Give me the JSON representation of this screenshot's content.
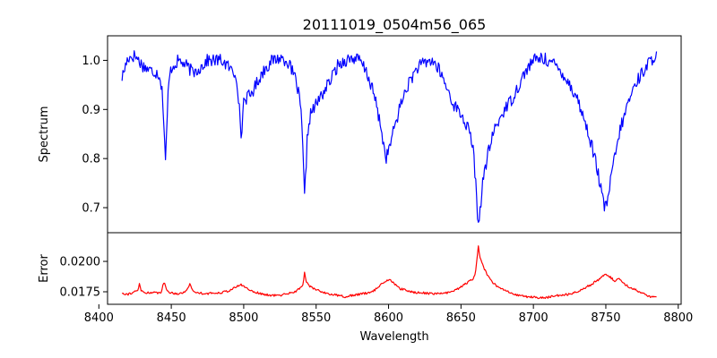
{
  "chart_data": {
    "type": "line",
    "title": "20111019_0504m56_065",
    "xlabel": "Wavelength",
    "xlim": [
      8406,
      8802
    ],
    "xticks": [
      8400,
      8450,
      8500,
      8550,
      8600,
      8650,
      8700,
      8750,
      8800
    ],
    "line_width": 1.2,
    "panels": [
      {
        "name": "spectrum",
        "ylabel": "Spectrum",
        "ylim": [
          0.649,
          1.05
        ],
        "yticks": [
          0.7,
          0.8,
          0.9,
          1.0
        ],
        "ytick_labels": [
          "0.7",
          "0.8",
          "0.9",
          "1.0"
        ],
        "color": "#0000ff",
        "base_points": [
          [
            8416,
            0.965
          ],
          [
            8420,
            1.005
          ],
          [
            8425,
            1.01
          ],
          [
            8430,
            0.99
          ],
          [
            8435,
            0.98
          ],
          [
            8440,
            0.975
          ],
          [
            8442,
            0.97
          ],
          [
            8444,
            0.93
          ],
          [
            8445,
            0.86
          ],
          [
            8446,
            0.8
          ],
          [
            8447,
            0.86
          ],
          [
            8448,
            0.95
          ],
          [
            8450,
            0.985
          ],
          [
            8455,
            1.0
          ],
          [
            8460,
            0.99
          ],
          [
            8465,
            0.975
          ],
          [
            8470,
            0.985
          ],
          [
            8475,
            1.0
          ],
          [
            8480,
            1.0
          ],
          [
            8485,
            1.0
          ],
          [
            8490,
            0.985
          ],
          [
            8493,
            0.975
          ],
          [
            8495,
            0.97
          ],
          [
            8496,
            0.94
          ],
          [
            8497,
            0.9
          ],
          [
            8498,
            0.84
          ],
          [
            8499,
            0.87
          ],
          [
            8500,
            0.92
          ],
          [
            8505,
            0.93
          ],
          [
            8510,
            0.96
          ],
          [
            8515,
            0.985
          ],
          [
            8520,
            1.0
          ],
          [
            8525,
            1.005
          ],
          [
            8530,
            1.0
          ],
          [
            8533,
            0.98
          ],
          [
            8536,
            0.96
          ],
          [
            8538,
            0.93
          ],
          [
            8540,
            0.88
          ],
          [
            8541,
            0.8
          ],
          [
            8542,
            0.72
          ],
          [
            8543,
            0.78
          ],
          [
            8544,
            0.85
          ],
          [
            8546,
            0.89
          ],
          [
            8550,
            0.91
          ],
          [
            8555,
            0.935
          ],
          [
            8560,
            0.96
          ],
          [
            8565,
            0.99
          ],
          [
            8570,
            1.0
          ],
          [
            8575,
            1.005
          ],
          [
            8580,
            1.0
          ],
          [
            8585,
            0.975
          ],
          [
            8590,
            0.93
          ],
          [
            8595,
            0.86
          ],
          [
            8598,
            0.8
          ],
          [
            8600,
            0.815
          ],
          [
            8605,
            0.875
          ],
          [
            8610,
            0.925
          ],
          [
            8615,
            0.96
          ],
          [
            8620,
            0.985
          ],
          [
            8625,
            0.995
          ],
          [
            8630,
            1.0
          ],
          [
            8635,
            0.98
          ],
          [
            8640,
            0.945
          ],
          [
            8645,
            0.91
          ],
          [
            8650,
            0.89
          ],
          [
            8655,
            0.86
          ],
          [
            8658,
            0.83
          ],
          [
            8660,
            0.76
          ],
          [
            8661,
            0.7
          ],
          [
            8662,
            0.67
          ],
          [
            8663,
            0.69
          ],
          [
            8665,
            0.75
          ],
          [
            8668,
            0.8
          ],
          [
            8672,
            0.85
          ],
          [
            8675,
            0.87
          ],
          [
            8680,
            0.9
          ],
          [
            8685,
            0.92
          ],
          [
            8690,
            0.95
          ],
          [
            8695,
            0.98
          ],
          [
            8700,
            1.0
          ],
          [
            8705,
            1.005
          ],
          [
            8710,
            1.0
          ],
          [
            8715,
            0.99
          ],
          [
            8720,
            0.975
          ],
          [
            8725,
            0.95
          ],
          [
            8730,
            0.925
          ],
          [
            8735,
            0.88
          ],
          [
            8740,
            0.83
          ],
          [
            8744,
            0.78
          ],
          [
            8747,
            0.73
          ],
          [
            8749,
            0.7
          ],
          [
            8751,
            0.71
          ],
          [
            8753,
            0.75
          ],
          [
            8756,
            0.8
          ],
          [
            8760,
            0.86
          ],
          [
            8765,
            0.91
          ],
          [
            8770,
            0.95
          ],
          [
            8775,
            0.975
          ],
          [
            8780,
            0.995
          ],
          [
            8785,
            1.015
          ]
        ],
        "noise_amplitude": 0.013,
        "noise_seed": 17
      },
      {
        "name": "error",
        "ylabel": "Error",
        "ylim": [
          0.01647,
          0.02236
        ],
        "yticks": [
          0.0175,
          0.02
        ],
        "ytick_labels": [
          "0.0175",
          "0.0200"
        ],
        "color": "#ff0000",
        "base_points": [
          [
            8416,
            0.0174
          ],
          [
            8420,
            0.0173
          ],
          [
            8425,
            0.0175
          ],
          [
            8427,
            0.0176
          ],
          [
            8428,
            0.0182
          ],
          [
            8429,
            0.0176
          ],
          [
            8432,
            0.0174
          ],
          [
            8435,
            0.01745
          ],
          [
            8440,
            0.0174
          ],
          [
            8443,
            0.0175
          ],
          [
            8445,
            0.0183
          ],
          [
            8447,
            0.0176
          ],
          [
            8450,
            0.0174
          ],
          [
            8455,
            0.01735
          ],
          [
            8460,
            0.0175
          ],
          [
            8463,
            0.0182
          ],
          [
            8465,
            0.0175
          ],
          [
            8470,
            0.0174
          ],
          [
            8475,
            0.01735
          ],
          [
            8480,
            0.0174
          ],
          [
            8485,
            0.01745
          ],
          [
            8490,
            0.0176
          ],
          [
            8495,
            0.0179
          ],
          [
            8498,
            0.0181
          ],
          [
            8502,
            0.0178
          ],
          [
            8505,
            0.0176
          ],
          [
            8510,
            0.0174
          ],
          [
            8515,
            0.01725
          ],
          [
            8520,
            0.0172
          ],
          [
            8525,
            0.0172
          ],
          [
            8530,
            0.01735
          ],
          [
            8535,
            0.0175
          ],
          [
            8538,
            0.0177
          ],
          [
            8541,
            0.0181
          ],
          [
            8542,
            0.0192
          ],
          [
            8543,
            0.0183
          ],
          [
            8546,
            0.0179
          ],
          [
            8550,
            0.0177
          ],
          [
            8555,
            0.01745
          ],
          [
            8560,
            0.0173
          ],
          [
            8565,
            0.0172
          ],
          [
            8570,
            0.0171
          ],
          [
            8575,
            0.0172
          ],
          [
            8580,
            0.0173
          ],
          [
            8585,
            0.0174
          ],
          [
            8590,
            0.0176
          ],
          [
            8595,
            0.0181
          ],
          [
            8598,
            0.0184
          ],
          [
            8600,
            0.0185
          ],
          [
            8603,
            0.0183
          ],
          [
            8607,
            0.0178
          ],
          [
            8612,
            0.0176
          ],
          [
            8618,
            0.01745
          ],
          [
            8625,
            0.0174
          ],
          [
            8630,
            0.01735
          ],
          [
            8635,
            0.01735
          ],
          [
            8640,
            0.0174
          ],
          [
            8645,
            0.01755
          ],
          [
            8650,
            0.0179
          ],
          [
            8655,
            0.0183
          ],
          [
            8658,
            0.0185
          ],
          [
            8660,
            0.019
          ],
          [
            8661,
            0.0201
          ],
          [
            8662,
            0.0213
          ],
          [
            8663,
            0.0204
          ],
          [
            8665,
            0.0197
          ],
          [
            8668,
            0.0189
          ],
          [
            8672,
            0.0182
          ],
          [
            8676,
            0.0179
          ],
          [
            8680,
            0.0176
          ],
          [
            8685,
            0.0174
          ],
          [
            8690,
            0.0172
          ],
          [
            8695,
            0.0171
          ],
          [
            8700,
            0.01705
          ],
          [
            8705,
            0.017
          ],
          [
            8710,
            0.01705
          ],
          [
            8715,
            0.01715
          ],
          [
            8720,
            0.01725
          ],
          [
            8725,
            0.0173
          ],
          [
            8730,
            0.0175
          ],
          [
            8735,
            0.0178
          ],
          [
            8740,
            0.0181
          ],
          [
            8745,
            0.0185
          ],
          [
            8749,
            0.0189
          ],
          [
            8752,
            0.0188
          ],
          [
            8756,
            0.0184
          ],
          [
            8759,
            0.0186
          ],
          [
            8762,
            0.0182
          ],
          [
            8766,
            0.0179
          ],
          [
            8770,
            0.0177
          ],
          [
            8775,
            0.0174
          ],
          [
            8780,
            0.0171
          ],
          [
            8785,
            0.017
          ]
        ],
        "noise_amplitude": 9e-05,
        "noise_seed": 91
      }
    ]
  }
}
